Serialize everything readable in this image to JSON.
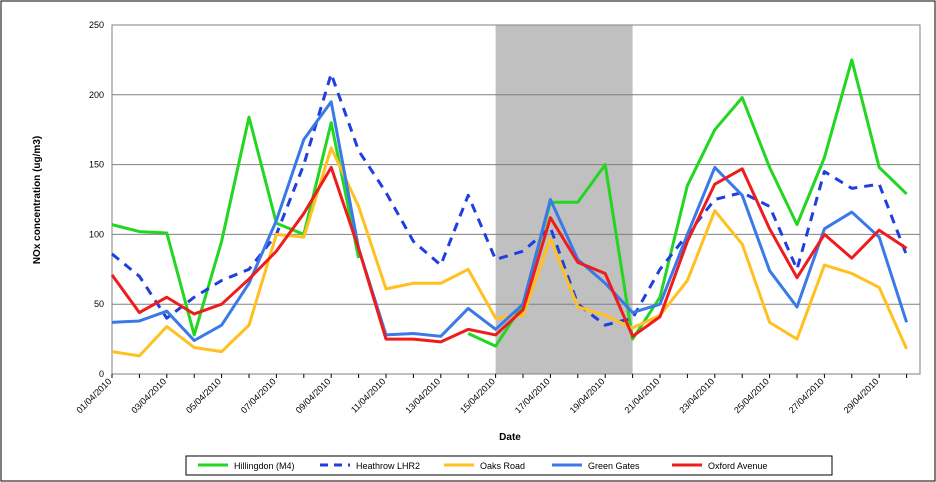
{
  "chart_data": {
    "type": "line",
    "y_label": "NOx concentration (ug/m3)",
    "x_label": "Date",
    "categories": [
      "01/04/2010",
      null,
      "03/04/2010",
      null,
      "05/04/2010",
      null,
      "07/04/2010",
      null,
      "09/04/2010",
      null,
      "11/04/2010",
      null,
      "13/04/2010",
      null,
      "15/04/2010",
      null,
      "17/04/2010",
      null,
      "19/04/2010",
      null,
      "21/04/2010",
      null,
      "23/04/2010",
      null,
      "25/04/2010",
      null,
      "27/04/2010",
      null,
      "29/04/2010",
      null
    ],
    "ylim": [
      0,
      250
    ],
    "yticks": [
      0,
      50,
      100,
      150,
      200,
      250
    ],
    "grid": true,
    "highlight": [
      14,
      19
    ],
    "series": [
      {
        "name": "Hillingdon (M4)",
        "color": "#22d622",
        "dash": false,
        "values": [
          107,
          102,
          101,
          28,
          95,
          184,
          108,
          100,
          180,
          83,
          null,
          null,
          null,
          29,
          20,
          50,
          123,
          123,
          150,
          25,
          55,
          135,
          175,
          198,
          148,
          107,
          155,
          225,
          148,
          129
        ]
      },
      {
        "name": "Heathrow LHR2",
        "color": "#1f3fe0",
        "dash": true,
        "values": [
          86,
          70,
          40,
          55,
          67,
          75,
          100,
          150,
          215,
          160,
          130,
          95,
          78,
          128,
          82,
          88,
          105,
          50,
          35,
          40,
          75,
          100,
          125,
          130,
          120,
          75,
          145,
          133,
          136,
          85
        ]
      },
      {
        "name": "Oaks Road",
        "color": "#ffc020",
        "dash": false,
        "values": [
          16,
          13,
          34,
          19,
          16,
          35,
          100,
          98,
          162,
          120,
          61,
          65,
          65,
          75,
          40,
          42,
          97,
          48,
          42,
          33,
          42,
          67,
          117,
          93,
          37,
          25,
          78,
          72,
          62,
          18
        ]
      },
      {
        "name": "Green Gates",
        "color": "#3a7ae8",
        "dash": false,
        "values": [
          37,
          38,
          45,
          24,
          35,
          65,
          110,
          168,
          195,
          90,
          28,
          29,
          27,
          47,
          32,
          50,
          125,
          82,
          65,
          44,
          50,
          100,
          148,
          128,
          74,
          48,
          104,
          116,
          98,
          37
        ]
      },
      {
        "name": "Oxford Avenue",
        "color": "#ee1c1c",
        "dash": false,
        "values": [
          71,
          44,
          55,
          43,
          50,
          68,
          88,
          115,
          148,
          90,
          25,
          25,
          23,
          32,
          28,
          46,
          112,
          80,
          72,
          27,
          41,
          95,
          136,
          147,
          104,
          69,
          100,
          83,
          103,
          90
        ]
      }
    ]
  }
}
